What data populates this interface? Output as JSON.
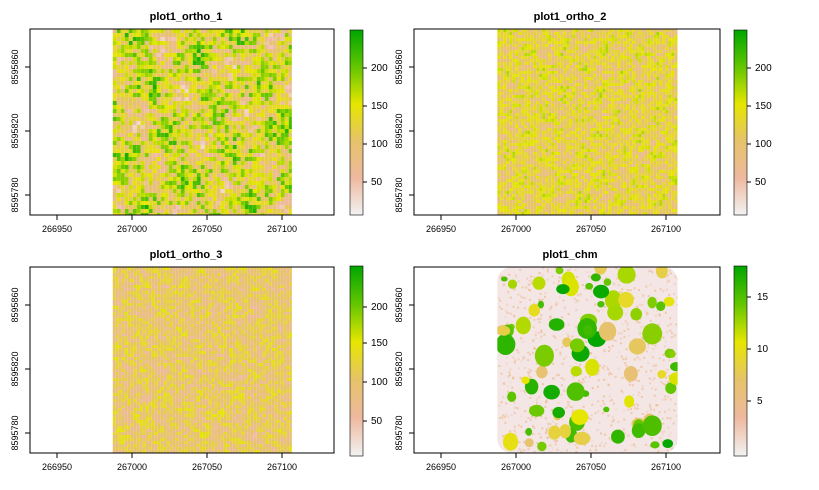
{
  "chart_data": [
    {
      "type": "heatmap",
      "title": "plot1_ortho_1",
      "xticks": [
        "266950",
        "267000",
        "267050",
        "267100"
      ],
      "yticks": [
        "8595780",
        "8595820",
        "8595860"
      ],
      "xlim": [
        266918,
        267120
      ],
      "ylim": [
        8595768,
        8595880
      ],
      "raster_extent": {
        "x": [
          266973,
          267092
        ],
        "y": [
          8595768,
          8595880
        ]
      },
      "colorbar": {
        "ticks": [
          "50",
          "100",
          "150",
          "200"
        ],
        "range": [
          0,
          245
        ]
      },
      "palette": [
        "#f2f2f2",
        "#eeb99f",
        "#e6c36a",
        "#e6e600",
        "#63c600",
        "#00a600"
      ],
      "texture": {
        "mean": 0.52,
        "spread": 0.28,
        "mottle": "medium"
      }
    },
    {
      "type": "heatmap",
      "title": "plot1_ortho_2",
      "xticks": [
        "266950",
        "267000",
        "267050",
        "267100"
      ],
      "yticks": [
        "8595780",
        "8595820",
        "8595860"
      ],
      "xlim": [
        266918,
        267120
      ],
      "ylim": [
        8595768,
        8595880
      ],
      "raster_extent": {
        "x": [
          266973,
          267092
        ],
        "y": [
          8595768,
          8595880
        ]
      },
      "colorbar": {
        "ticks": [
          "50",
          "100",
          "150",
          "200"
        ],
        "range": [
          0,
          245
        ]
      },
      "palette": [
        "#f2f2f2",
        "#eeb99f",
        "#e6c36a",
        "#e6e600",
        "#63c600",
        "#00a600"
      ],
      "texture": {
        "mean": 0.47,
        "spread": 0.18,
        "mottle": "fine"
      }
    },
    {
      "type": "heatmap",
      "title": "plot1_ortho_3",
      "xticks": [
        "266950",
        "267000",
        "267050",
        "267100"
      ],
      "yticks": [
        "8595780",
        "8595820",
        "8595860"
      ],
      "xlim": [
        266918,
        267120
      ],
      "ylim": [
        8595768,
        8595880
      ],
      "raster_extent": {
        "x": [
          266973,
          267092
        ],
        "y": [
          8595768,
          8595880
        ]
      },
      "colorbar": {
        "ticks": [
          "50",
          "100",
          "150",
          "200"
        ],
        "range": [
          0,
          245
        ]
      },
      "palette": [
        "#f2f2f2",
        "#eeb99f",
        "#e6c36a",
        "#e6e600",
        "#63c600",
        "#00a600"
      ],
      "texture": {
        "mean": 0.4,
        "spread": 0.16,
        "mottle": "fine"
      }
    },
    {
      "type": "heatmap",
      "title": "plot1_chm",
      "xticks": [
        "266950",
        "267000",
        "267050",
        "267100"
      ],
      "yticks": [
        "8595780",
        "8595820",
        "8595860"
      ],
      "xlim": [
        266918,
        267120
      ],
      "ylim": [
        8595768,
        8595880
      ],
      "raster_extent": {
        "x": [
          266973,
          267092
        ],
        "y": [
          8595768,
          8595880
        ]
      },
      "colorbar": {
        "ticks": [
          "5",
          "10",
          "15"
        ],
        "range": [
          0,
          18
        ]
      },
      "palette": [
        "#f2f2f2",
        "#eeb99f",
        "#e6c36a",
        "#e6e600",
        "#63c600",
        "#00a600"
      ],
      "texture": {
        "mean": 0.12,
        "spread": 0.1,
        "mottle": "crowns"
      }
    }
  ]
}
